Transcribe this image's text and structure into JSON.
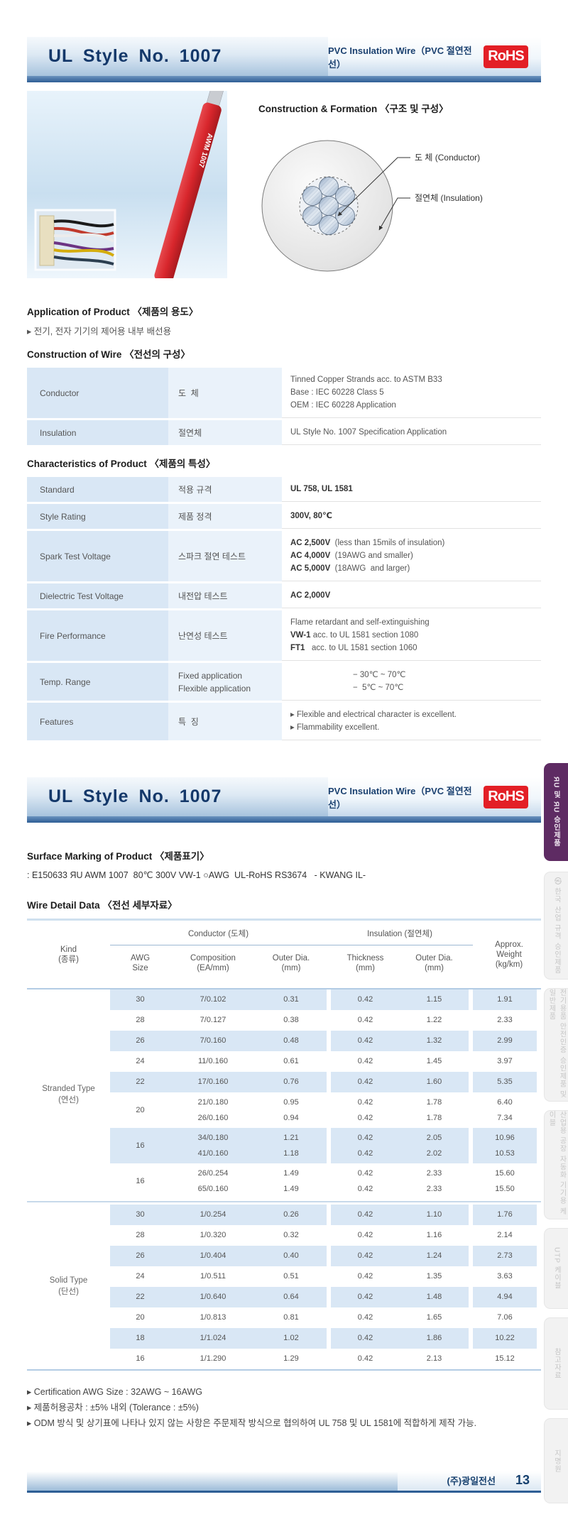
{
  "header": {
    "title": "UL Style No. 1007",
    "subtitle": "PVC Insulation Wire（PVC 절연전선）",
    "rohs": "RoHS"
  },
  "photo": {
    "cable_text": "AWM 1007"
  },
  "diagram": {
    "title": "Construction & Formation 〈구조 및 구성〉",
    "conductor_label": "도  체 (Conductor)",
    "insulation_label": "절연체 (Insulation)"
  },
  "application": {
    "title": "Application of Product 〈제품의 용도〉",
    "items": [
      "▸ 전기, 전자 기기의 제어용 내부 배선용"
    ]
  },
  "construction": {
    "title": "Construction of Wire 〈전선의 구성〉",
    "rows": [
      {
        "label": "Conductor",
        "sub": [
          "도  체"
        ],
        "lines": [
          [
            {
              "t": "Tinned Copper Strands acc. to ASTM B33"
            }
          ],
          [
            {
              "t": "Base : IEC 60228 Class 5"
            }
          ],
          [
            {
              "t": "OEM : IEC 60228 Application"
            }
          ]
        ]
      },
      {
        "label": "Insulation",
        "sub": [
          "절연체"
        ],
        "lines": [
          [
            {
              "t": "UL Style No. 1007 Specification Application"
            }
          ]
        ]
      }
    ]
  },
  "characteristics": {
    "title": "Characteristics of Product 〈제품의 특성〉",
    "rows": [
      {
        "label": "Standard",
        "sub": [
          "적용 규격"
        ],
        "lines": [
          [
            {
              "b": "UL 758, UL 1581"
            }
          ]
        ]
      },
      {
        "label": "Style Rating",
        "sub": [
          "제품 정격"
        ],
        "lines": [
          [
            {
              "b": "300V, 80℃"
            }
          ]
        ]
      },
      {
        "label": "Spark Test Voltage",
        "sub": [
          "스파크 절연 테스트"
        ],
        "lines": [
          [
            {
              "b": "AC 2,500V"
            },
            {
              "t": "  (less than 15mils of insulation)"
            }
          ],
          [
            {
              "b": "AC 4,000V"
            },
            {
              "t": "  (19AWG and smaller)"
            }
          ],
          [
            {
              "b": "AC 5,000V"
            },
            {
              "t": "  (18AWG  and larger)"
            }
          ]
        ]
      },
      {
        "label": "Dielectric Test Voltage",
        "sub": [
          "내전압 테스트"
        ],
        "lines": [
          [
            {
              "b": "AC 2,000V"
            }
          ]
        ]
      },
      {
        "label": "Fire Performance",
        "sub": [
          "난연성 테스트"
        ],
        "lines": [
          [
            {
              "t": "Flame retardant and self-extinguishing"
            }
          ],
          [
            {
              "b": "VW-1"
            },
            {
              "t": " acc. to UL 1581 section 1080"
            }
          ],
          [
            {
              "b": "FT1"
            },
            {
              "t": "   acc. to UL 1581 section 1060"
            }
          ]
        ]
      },
      {
        "label": "Temp. Range",
        "sub": [
          "Fixed application",
          "Flexible application"
        ],
        "indent": true,
        "lines": [
          [
            {
              "t": "− 30℃ ~ 70℃"
            }
          ],
          [
            {
              "t": "−  5℃ ~ 70℃"
            }
          ]
        ]
      },
      {
        "label": "Features",
        "sub": [
          "특  징"
        ],
        "lines": [
          [
            {
              "t": "▸ Flexible and electrical character is excellent."
            }
          ],
          [
            {
              "t": "▸ Flammability excellent."
            }
          ]
        ]
      }
    ]
  },
  "surface_marking": {
    "title": "Surface Marking  of Product 〈제품표기〉",
    "value": ": E150633 ЯU AWM 1007  80℃ 300V VW-1 ○AWG  UL-RoHS RS3674   - KWANG IL-"
  },
  "wire_detail": {
    "title": "Wire Detail Data 〈전선 세부자료〉",
    "header": {
      "kind": [
        "Kind",
        "(종류)"
      ],
      "conductor_group": "Conductor (도체)",
      "insulation_group": "Insulation (절연체)",
      "weight": [
        "Approx.",
        "Weight",
        "(kg/km)"
      ],
      "cols": [
        [
          "AWG",
          "Size"
        ],
        [
          "Composition",
          "(EA/mm)"
        ],
        [
          "Outer Dia.",
          "(mm)"
        ],
        [
          "Thickness",
          "(mm)"
        ],
        [
          "Outer Dia.",
          "(mm)"
        ]
      ]
    },
    "sections": [
      {
        "kind": [
          "Stranded Type",
          "(연선)"
        ],
        "rows": [
          {
            "awg": "30",
            "comp": [
              "7/0.102"
            ],
            "od": [
              "0.31"
            ],
            "th": [
              "0.42"
            ],
            "iod": [
              "1.15"
            ],
            "wt": [
              "1.91"
            ]
          },
          {
            "awg": "28",
            "comp": [
              "7/0.127"
            ],
            "od": [
              "0.38"
            ],
            "th": [
              "0.42"
            ],
            "iod": [
              "1.22"
            ],
            "wt": [
              "2.33"
            ]
          },
          {
            "awg": "26",
            "comp": [
              "7/0.160"
            ],
            "od": [
              "0.48"
            ],
            "th": [
              "0.42"
            ],
            "iod": [
              "1.32"
            ],
            "wt": [
              "2.99"
            ]
          },
          {
            "awg": "24",
            "comp": [
              "11/0.160"
            ],
            "od": [
              "0.61"
            ],
            "th": [
              "0.42"
            ],
            "iod": [
              "1.45"
            ],
            "wt": [
              "3.97"
            ]
          },
          {
            "awg": "22",
            "comp": [
              "17/0.160"
            ],
            "od": [
              "0.76"
            ],
            "th": [
              "0.42"
            ],
            "iod": [
              "1.60"
            ],
            "wt": [
              "5.35"
            ]
          },
          {
            "awg": "20",
            "comp": [
              "21/0.180",
              "26/0.160"
            ],
            "od": [
              "0.95",
              "0.94"
            ],
            "th": [
              "0.42",
              "0.42"
            ],
            "iod": [
              "1.78",
              "1.78"
            ],
            "wt": [
              "6.40",
              "7.34"
            ]
          },
          {
            "awg": "16",
            "comp": [
              "34/0.180",
              "41/0.160"
            ],
            "od": [
              "1.21",
              "1.18"
            ],
            "th": [
              "0.42",
              "0.42"
            ],
            "iod": [
              "2.05",
              "2.02"
            ],
            "wt": [
              "10.96",
              "10.53"
            ]
          },
          {
            "awg": "16",
            "comp": [
              "26/0.254",
              "65/0.160"
            ],
            "od": [
              "1.49",
              "1.49"
            ],
            "th": [
              "0.42",
              "0.42"
            ],
            "iod": [
              "2.33",
              "2.33"
            ],
            "wt": [
              "15.60",
              "15.50"
            ]
          }
        ]
      },
      {
        "kind": [
          "Solid Type",
          "(단선)"
        ],
        "rows": [
          {
            "awg": "30",
            "comp": [
              "1/0.254"
            ],
            "od": [
              "0.26"
            ],
            "th": [
              "0.42"
            ],
            "iod": [
              "1.10"
            ],
            "wt": [
              "1.76"
            ]
          },
          {
            "awg": "28",
            "comp": [
              "1/0.320"
            ],
            "od": [
              "0.32"
            ],
            "th": [
              "0.42"
            ],
            "iod": [
              "1.16"
            ],
            "wt": [
              "2.14"
            ]
          },
          {
            "awg": "26",
            "comp": [
              "1/0.404"
            ],
            "od": [
              "0.40"
            ],
            "th": [
              "0.42"
            ],
            "iod": [
              "1.24"
            ],
            "wt": [
              "2.73"
            ]
          },
          {
            "awg": "24",
            "comp": [
              "1/0.511"
            ],
            "od": [
              "0.51"
            ],
            "th": [
              "0.42"
            ],
            "iod": [
              "1.35"
            ],
            "wt": [
              "3.63"
            ]
          },
          {
            "awg": "22",
            "comp": [
              "1/0.640"
            ],
            "od": [
              "0.64"
            ],
            "th": [
              "0.42"
            ],
            "iod": [
              "1.48"
            ],
            "wt": [
              "4.94"
            ]
          },
          {
            "awg": "20",
            "comp": [
              "1/0.813"
            ],
            "od": [
              "0.81"
            ],
            "th": [
              "0.42"
            ],
            "iod": [
              "1.65"
            ],
            "wt": [
              "7.06"
            ]
          },
          {
            "awg": "18",
            "comp": [
              "1/1.024"
            ],
            "od": [
              "1.02"
            ],
            "th": [
              "0.42"
            ],
            "iod": [
              "1.86"
            ],
            "wt": [
              "10.22"
            ]
          },
          {
            "awg": "16",
            "comp": [
              "1/1.290"
            ],
            "od": [
              "1.29"
            ],
            "th": [
              "0.42"
            ],
            "iod": [
              "2.13"
            ],
            "wt": [
              "15.12"
            ]
          }
        ]
      }
    ]
  },
  "notes": [
    "▸ Certification AWG Size : 32AWG ~ 16AWG",
    "▸ 제품허용공차 : ±5% 내외 (Tolerance : ±5%)",
    "▸ ODM 방식 및 상기표에 나타나 있지 않는 사항은 주문제작 방식으로 협의하여 UL 758 및 UL 1581에 적합하게 제작 가능."
  ],
  "footer": {
    "company": "(주)광일전선",
    "page": "13"
  },
  "side_tabs": [
    {
      "label": "ЯU 및 ЯU 승인제품",
      "active": true
    },
    {
      "label": "㉿ 한국 산업 규격 승인제품",
      "active": false
    },
    {
      "label": "전기용품 안전인증 승인제품 및 일반제품",
      "active": false
    },
    {
      "label": "산업용 공장 자동화 기기용 케이블",
      "active": false
    },
    {
      "label": "UTP 케이블",
      "active": false
    },
    {
      "label": "참고자료",
      "active": false
    },
    {
      "label": "지명원",
      "active": false
    }
  ],
  "colors": {
    "accent_navy": "#14386a",
    "rohs_red": "#e31f26",
    "table_blue": "#d9e7f5",
    "tab_purple": "#5e2b63"
  }
}
